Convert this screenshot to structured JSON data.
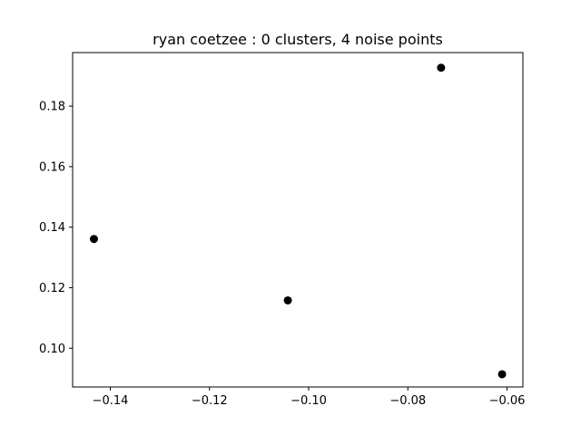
{
  "chart_data": {
    "type": "scatter",
    "title": "ryan coetzee : 0 clusters, 4 noise points",
    "xlabel": "",
    "ylabel": "",
    "xlim": [
      -0.1476,
      -0.0568
    ],
    "ylim": [
      0.0872,
      0.1977
    ],
    "xticks": [
      -0.14,
      -0.12,
      -0.1,
      -0.08,
      -0.06
    ],
    "xtick_labels": [
      "−0.14",
      "−0.12",
      "−0.10",
      "−0.08",
      "−0.06"
    ],
    "yticks": [
      0.1,
      0.12,
      0.14,
      0.16,
      0.18
    ],
    "ytick_labels": [
      "0.10",
      "0.12",
      "0.14",
      "0.16",
      "0.18"
    ],
    "grid": false,
    "series": [
      {
        "color": "#000000",
        "points": [
          {
            "x": -0.1433,
            "y": 0.1361
          },
          {
            "x": -0.1042,
            "y": 0.1158
          },
          {
            "x": -0.0733,
            "y": 0.1927
          },
          {
            "x": -0.061,
            "y": 0.0914
          }
        ]
      }
    ]
  }
}
